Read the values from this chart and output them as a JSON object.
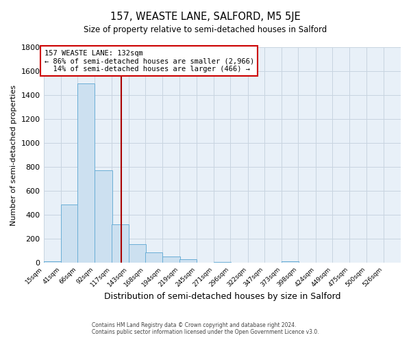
{
  "title": "157, WEASTE LANE, SALFORD, M5 5JE",
  "subtitle": "Size of property relative to semi-detached houses in Salford",
  "xlabel": "Distribution of semi-detached houses by size in Salford",
  "ylabel": "Number of semi-detached properties",
  "bin_labels": [
    "15sqm",
    "41sqm",
    "66sqm",
    "92sqm",
    "117sqm",
    "143sqm",
    "168sqm",
    "194sqm",
    "219sqm",
    "245sqm",
    "271sqm",
    "296sqm",
    "322sqm",
    "347sqm",
    "373sqm",
    "398sqm",
    "424sqm",
    "449sqm",
    "475sqm",
    "500sqm",
    "526sqm"
  ],
  "bin_edges": [
    15,
    41,
    66,
    92,
    117,
    143,
    168,
    194,
    219,
    245,
    271,
    296,
    322,
    347,
    373,
    398,
    424,
    449,
    475,
    500,
    526
  ],
  "bar_values": [
    15,
    490,
    1500,
    775,
    320,
    155,
    90,
    55,
    30,
    5,
    10,
    5,
    0,
    0,
    15,
    0,
    0,
    0,
    0,
    5
  ],
  "bar_color": "#cce0f0",
  "bar_edge_color": "#6aaed6",
  "property_value": 132,
  "vline_color": "#aa0000",
  "annotation_line1": "157 WEASTE LANE: 132sqm",
  "annotation_line2": "← 86% of semi-detached houses are smaller (2,966)",
  "annotation_line3": "  14% of semi-detached houses are larger (466) →",
  "annotation_box_color": "#ffffff",
  "annotation_box_edge": "#cc0000",
  "ylim": [
    0,
    1800
  ],
  "yticks": [
    0,
    200,
    400,
    600,
    800,
    1000,
    1200,
    1400,
    1600,
    1800
  ],
  "footer_line1": "Contains HM Land Registry data © Crown copyright and database right 2024.",
  "footer_line2": "Contains public sector information licensed under the Open Government Licence v3.0.",
  "grid_color": "#c8d4e0",
  "background_color": "#e8f0f8"
}
